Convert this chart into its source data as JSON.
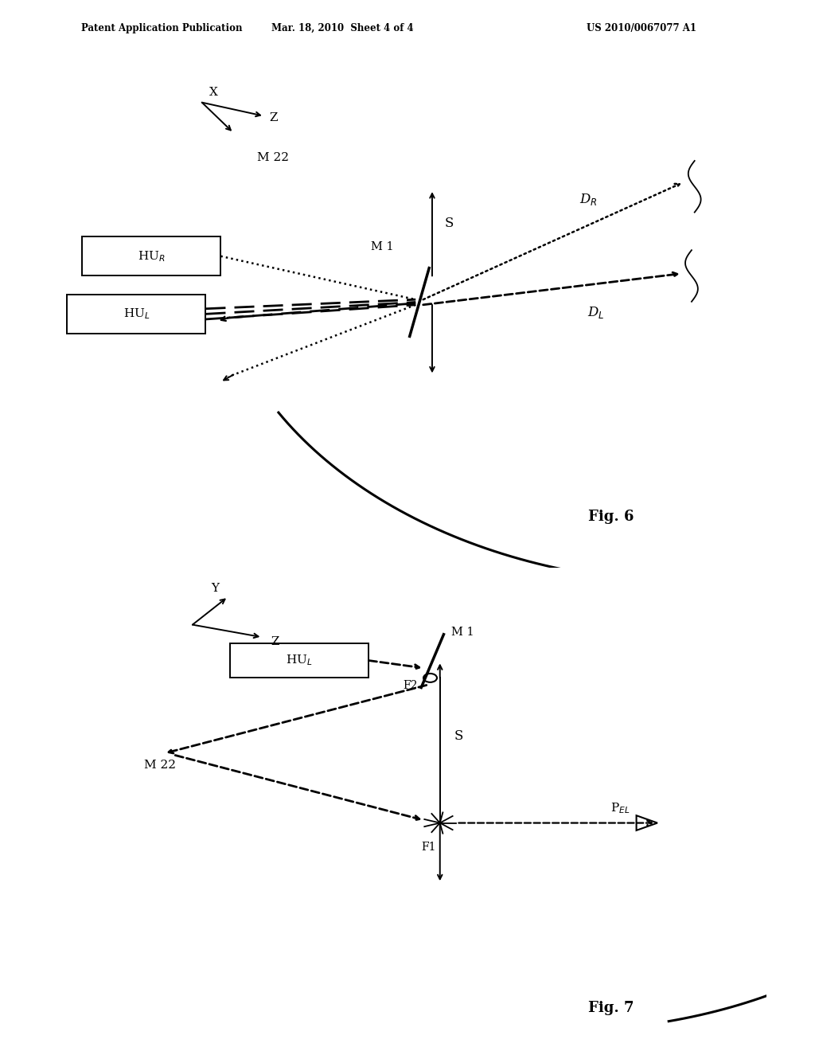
{
  "header_left": "Patent Application Publication",
  "header_center": "Mar. 18, 2010  Sheet 4 of 4",
  "header_right": "US 2010/0067077 A1",
  "fig6_label": "Fig. 6",
  "fig7_label": "Fig. 7",
  "bg_color": "#ffffff"
}
